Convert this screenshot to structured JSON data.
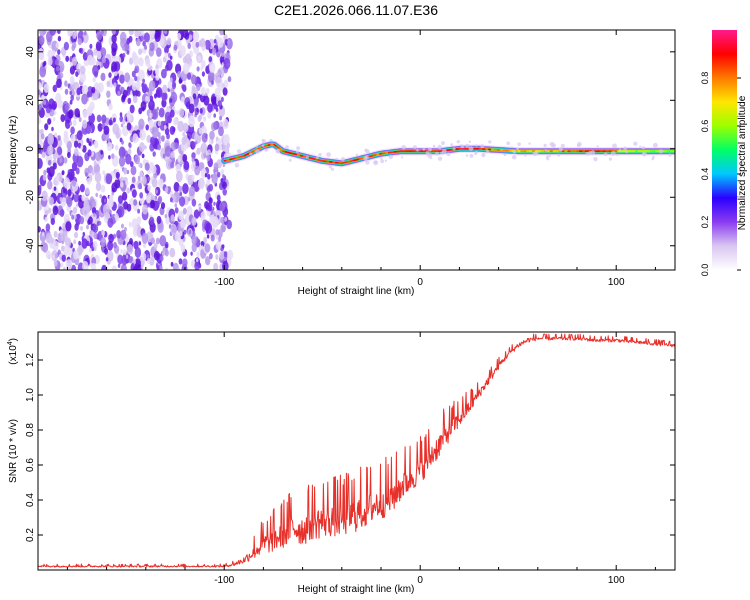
{
  "title": "C2E1.2026.066.11.07.E36",
  "chart_data": [
    {
      "type": "heatmap",
      "name": "spectrogram",
      "xlabel": "Height of straight line (km)",
      "ylabel": "Frequency (Hz)",
      "xlim": [
        -195,
        130
      ],
      "ylim": [
        -50,
        49
      ],
      "xticks": [
        -100,
        0,
        100
      ],
      "xtick_labels": [
        "-100",
        "0",
        "100"
      ],
      "yticks": [
        40,
        20,
        0,
        -20,
        -40
      ],
      "ytick_labels": [
        "40",
        "20",
        "0",
        "-20",
        "-40"
      ],
      "noise_region_x": [
        -195,
        -100
      ],
      "ridge": {
        "x": [
          -100,
          -90,
          -80,
          -75,
          -70,
          -60,
          -50,
          -40,
          -35,
          -30,
          -20,
          -10,
          0,
          10,
          20,
          30,
          50,
          70,
          90,
          110,
          130
        ],
        "freq_hz": [
          -5,
          -3,
          1,
          2,
          -1,
          -3,
          -5,
          -6,
          -5,
          -4,
          -2,
          -1,
          -1,
          -1,
          0,
          0,
          -1,
          -1,
          -1,
          -1,
          -1
        ],
        "amplitude": [
          0.9,
          0.9,
          0.9,
          0.85,
          0.85,
          0.9,
          0.9,
          0.9,
          0.9,
          0.85,
          0.85,
          0.95,
          0.95,
          0.95,
          0.95,
          0.9,
          0.75,
          0.8,
          0.95,
          0.6,
          0.6
        ]
      },
      "colorbar": {
        "label": "Normalized spectral amplitude",
        "range": [
          0,
          1
        ],
        "ticks": [
          0.0,
          0.2,
          0.4,
          0.6,
          0.8
        ],
        "tick_labels": [
          "0.0",
          "0.2",
          "0.4",
          "0.6",
          "0.8"
        ],
        "colors": [
          "#ffffff",
          "#d9c6f2",
          "#8b3cf0",
          "#2a00ff",
          "#00c8ff",
          "#00ff66",
          "#9cff00",
          "#ffe600",
          "#ff7a00",
          "#ff0000",
          "#ff1a8c"
        ]
      }
    },
    {
      "type": "line",
      "name": "snr",
      "xlabel": "Height of straight line (km)",
      "ylabel": "SNR (10 * v/v)",
      "scale_label": "(x10",
      "scale_exponent": "4",
      "xlim": [
        -195,
        130
      ],
      "ylim": [
        0.0,
        1.36
      ],
      "xticks": [
        -100,
        0,
        100
      ],
      "xtick_labels": [
        "-100",
        "0",
        "100"
      ],
      "yticks": [
        0.2,
        0.4,
        0.6,
        0.8,
        1.0,
        1.2
      ],
      "ytick_labels": [
        "0.2",
        "0.4",
        "0.6",
        "0.8",
        "1.0",
        "1.2"
      ],
      "color": "#e8302a",
      "series": [
        {
          "name": "SNR",
          "x": [
            -195,
            -150,
            -120,
            -100,
            -95,
            -90,
            -85,
            -80,
            -75,
            -70,
            -65,
            -60,
            -55,
            -50,
            -45,
            -40,
            -35,
            -30,
            -25,
            -20,
            -15,
            -10,
            -5,
            0,
            5,
            10,
            15,
            20,
            25,
            30,
            35,
            40,
            45,
            50,
            55,
            60,
            70,
            80,
            90,
            100,
            110,
            120,
            130
          ],
          "y": [
            0.02,
            0.02,
            0.02,
            0.02,
            0.03,
            0.05,
            0.09,
            0.13,
            0.15,
            0.18,
            0.22,
            0.2,
            0.24,
            0.25,
            0.26,
            0.26,
            0.28,
            0.3,
            0.33,
            0.36,
            0.38,
            0.45,
            0.5,
            0.55,
            0.62,
            0.7,
            0.78,
            0.85,
            0.92,
            1.0,
            1.08,
            1.16,
            1.23,
            1.28,
            1.31,
            1.32,
            1.32,
            1.32,
            1.31,
            1.31,
            1.3,
            1.29,
            1.28
          ],
          "spread": [
            0.01,
            0.01,
            0.01,
            0.01,
            0.02,
            0.04,
            0.08,
            0.12,
            0.14,
            0.16,
            0.18,
            0.18,
            0.19,
            0.2,
            0.2,
            0.2,
            0.21,
            0.21,
            0.2,
            0.2,
            0.19,
            0.18,
            0.17,
            0.16,
            0.15,
            0.14,
            0.12,
            0.1,
            0.08,
            0.06,
            0.05,
            0.04,
            0.03,
            0.03,
            0.03,
            0.02,
            0.02,
            0.02,
            0.02,
            0.02,
            0.02,
            0.02,
            0.02
          ]
        }
      ]
    }
  ]
}
